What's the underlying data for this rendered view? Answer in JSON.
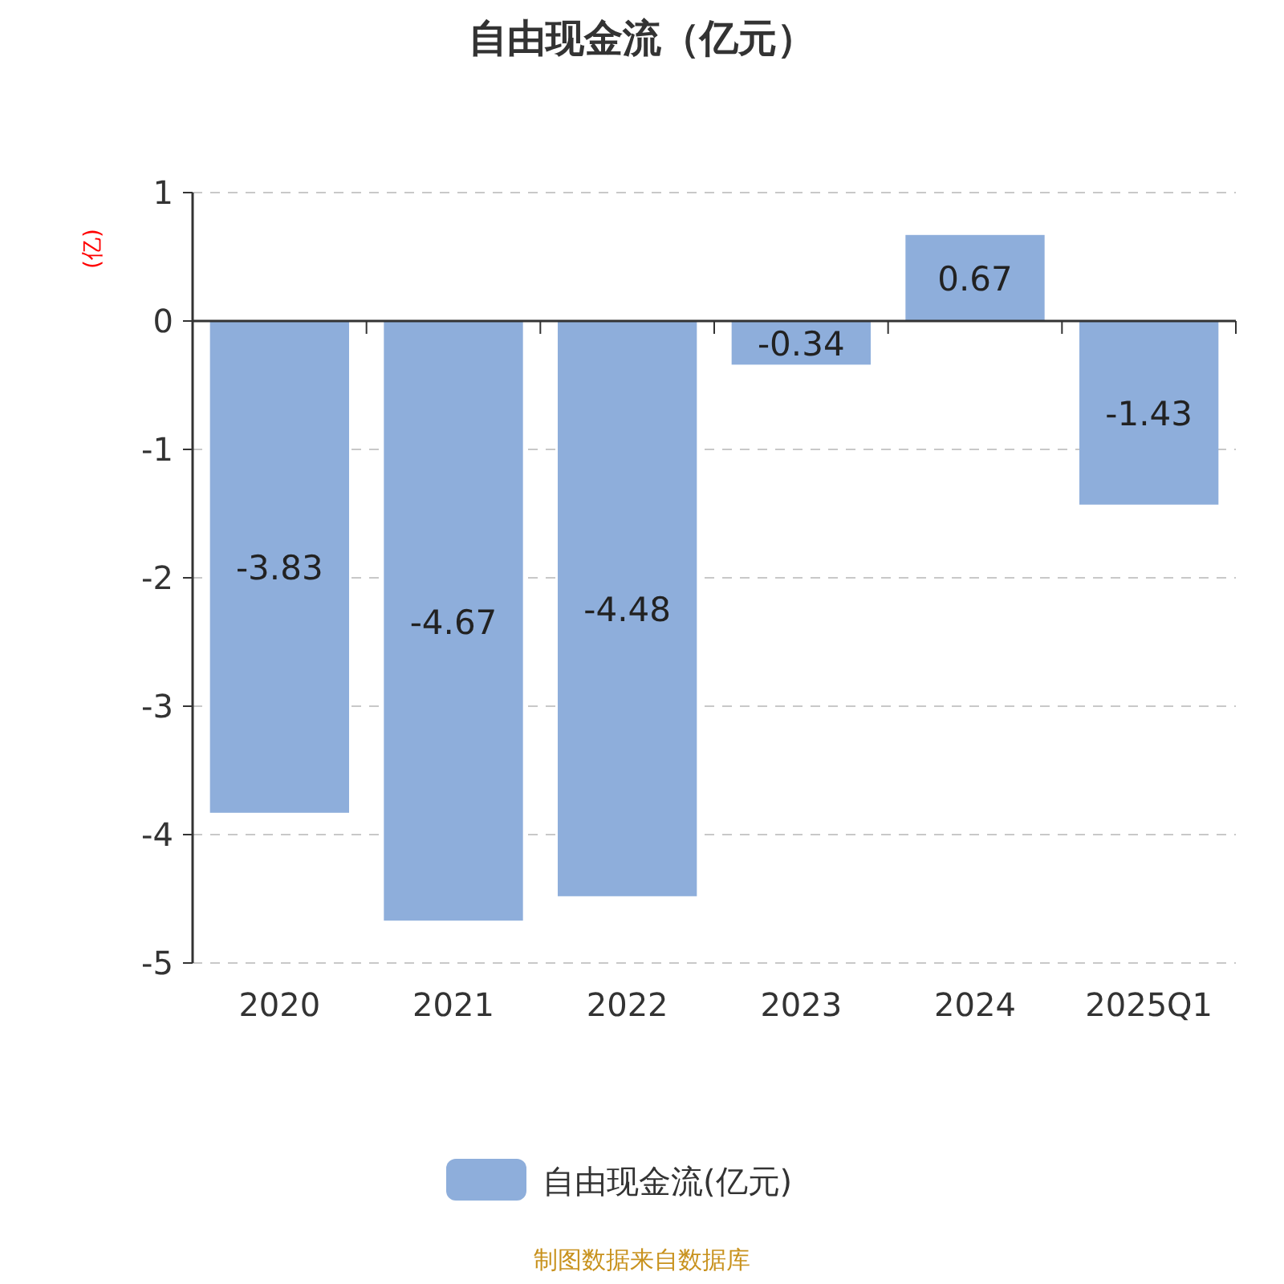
{
  "chart_data": {
    "type": "bar",
    "title": "自由现金流（亿元）",
    "ylabel": "(亿)",
    "categories": [
      "2020",
      "2021",
      "2022",
      "2023",
      "2024",
      "2025Q1"
    ],
    "series": [
      {
        "name": "自由现金流(亿元)",
        "color": "#8eaedb",
        "values": [
          -3.83,
          -4.67,
          -4.48,
          -0.34,
          0.67,
          -1.43
        ]
      }
    ],
    "ylim": [
      -5,
      1
    ],
    "yticks": [
      -5,
      -4,
      -3,
      -2,
      -1,
      0,
      1
    ],
    "grid": "y",
    "data_labels": true,
    "legend": "bottom",
    "annotations": [
      "制图数据来自数据库"
    ]
  }
}
